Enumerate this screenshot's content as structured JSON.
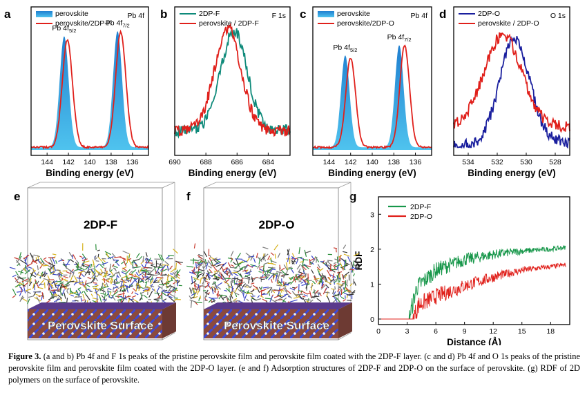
{
  "caption": {
    "label": "Figure 3.",
    "text": "(a and b) Pb 4f and F 1s peaks of the pristine perovskite film and perovskite film coated with the 2DP-F layer. (c and d) Pb 4f and O 1s peaks of the pristine perovskite film and perovskite film coated with the 2DP-O layer. (e and f) Adsorption structures of 2DP-F and 2DP-O on the surface of perovskite. (g) RDF of 2D polymers on the surface of perovskite."
  },
  "colors": {
    "blue": "#2aa3dc",
    "red": "#e0201b",
    "teal": "#0e8a7a",
    "navy": "#1a1f9e",
    "green": "#17974a"
  },
  "chart_data": [
    {
      "panel": "a",
      "type": "area",
      "title": "Pb 4f",
      "xlabel": "Binding energy (eV)",
      "ylabel": "",
      "xlim": [
        145.5,
        134.5
      ],
      "x_reversed": true,
      "xticks": [
        144,
        142,
        140,
        138,
        136
      ],
      "annotations": [
        "Pb 4f5/2",
        "Pb 4f7/2"
      ],
      "series": [
        {
          "name": "perovskite",
          "style": "filled",
          "peaks": [
            {
              "center": 142.4,
              "height": 0.87
            },
            {
              "center": 137.4,
              "height": 0.91
            }
          ],
          "width": 0.42
        },
        {
          "name": "perovskite/2DP-F",
          "style": "line",
          "peaks": [
            {
              "center": 142.1,
              "height": 0.84
            },
            {
              "center": 137.1,
              "height": 0.9
            }
          ],
          "width": 0.48
        }
      ]
    },
    {
      "panel": "b",
      "type": "line",
      "title": "F 1s",
      "xlabel": "Binding energy (eV)",
      "ylabel": "",
      "xlim": [
        690,
        682.6
      ],
      "x_reversed": true,
      "xticks": [
        690,
        688,
        686,
        684
      ],
      "series": [
        {
          "name": "2DP-F",
          "center": 686.2,
          "height": 0.78,
          "width": 0.85,
          "baseline": 0.15
        },
        {
          "name": "perovskite / 2DP-F",
          "center": 686.6,
          "height": 0.8,
          "width": 0.85,
          "baseline": 0.15
        }
      ]
    },
    {
      "panel": "c",
      "type": "area",
      "title": "Pb 4f",
      "xlabel": "Binding energy (eV)",
      "ylabel": "",
      "xlim": [
        145.5,
        134.5
      ],
      "x_reversed": true,
      "xticks": [
        144,
        142,
        140,
        138,
        136
      ],
      "annotations": [
        "Pb 4f5/2",
        "Pb 4f7/2"
      ],
      "series": [
        {
          "name": "perovskite",
          "style": "filled",
          "peaks": [
            {
              "center": 142.5,
              "height": 0.72
            },
            {
              "center": 137.5,
              "height": 0.8
            }
          ],
          "width": 0.4
        },
        {
          "name": "perovskite/2DP-O",
          "style": "line",
          "peaks": [
            {
              "center": 142.0,
              "height": 0.7
            },
            {
              "center": 137.0,
              "height": 0.8
            }
          ],
          "width": 0.45
        }
      ]
    },
    {
      "panel": "d",
      "type": "line",
      "title": "O 1s",
      "xlabel": "Binding energy (eV)",
      "ylabel": "",
      "xlim": [
        535,
        527
      ],
      "x_reversed": true,
      "xticks": [
        534,
        532,
        530,
        528
      ],
      "series": [
        {
          "name": "2DP-O",
          "center": 530.8,
          "height": 0.82,
          "width": 1.05,
          "baseline": 0.06
        },
        {
          "name": "perovskite / 2DP-O",
          "center": 531.6,
          "height": 0.72,
          "width": 1.3,
          "baseline": 0.18
        }
      ]
    },
    {
      "panel": "g",
      "type": "line",
      "title": "",
      "xlabel": "Distance (Å)",
      "ylabel": "RDF",
      "xlim": [
        0,
        20
      ],
      "ylim": [
        0,
        3.5
      ],
      "xticks": [
        0,
        3,
        6,
        9,
        12,
        15,
        18
      ],
      "yticks": [
        0,
        1,
        2,
        3
      ],
      "series": [
        {
          "name": "2DP-F",
          "onset": 3.2,
          "points": [
            [
              0,
              0
            ],
            [
              3.2,
              0
            ],
            [
              4,
              0.9
            ],
            [
              6,
              1.4
            ],
            [
              9,
              1.7
            ],
            [
              12,
              1.85
            ],
            [
              15,
              1.95
            ],
            [
              18,
              2.0
            ],
            [
              19.5,
              2.05
            ]
          ]
        },
        {
          "name": "2DP-O",
          "onset": 3.6,
          "points": [
            [
              0,
              0
            ],
            [
              3.6,
              0
            ],
            [
              4.2,
              0.4
            ],
            [
              6,
              0.65
            ],
            [
              9,
              0.95
            ],
            [
              12,
              1.2
            ],
            [
              15,
              1.4
            ],
            [
              18,
              1.5
            ],
            [
              19.5,
              1.55
            ]
          ]
        }
      ]
    }
  ],
  "structures": [
    {
      "panel": "e",
      "label": "2DP-F",
      "surface_label": "Perovskite Surface"
    },
    {
      "panel": "f",
      "label": "2DP-O",
      "surface_label": "Perovskite Surface"
    }
  ],
  "panel_labels": [
    "a",
    "b",
    "c",
    "d",
    "e",
    "f",
    "g"
  ]
}
